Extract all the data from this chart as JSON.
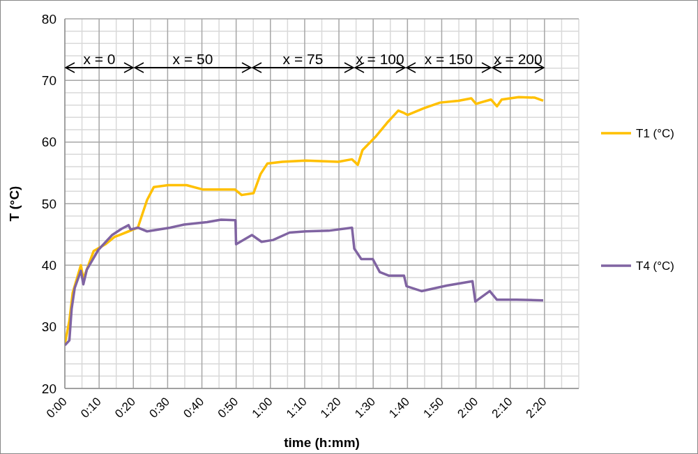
{
  "chart_data": {
    "type": "line",
    "xlabel": "time (h:mm)",
    "ylabel": "T (°C)",
    "xlim": [
      0,
      2.5
    ],
    "xticks": [
      {
        "value": 0,
        "label": "0:00"
      },
      {
        "value": 0.0833,
        "label": null
      },
      {
        "value": 0.1667,
        "label": "0:10"
      },
      {
        "value": 0.25,
        "label": null
      },
      {
        "value": 0.3333,
        "label": "0:20"
      },
      {
        "value": 0.4167,
        "label": null
      },
      {
        "value": 0.5,
        "label": "0:30"
      },
      {
        "value": 0.5833,
        "label": null
      },
      {
        "value": 0.6667,
        "label": "0:40"
      },
      {
        "value": 0.75,
        "label": null
      },
      {
        "value": 0.8333,
        "label": "0:50"
      },
      {
        "value": 0.9167,
        "label": null
      },
      {
        "value": 1,
        "label": "1:00"
      },
      {
        "value": 1.0833,
        "label": null
      },
      {
        "value": 1.1667,
        "label": "1:10"
      },
      {
        "value": 1.25,
        "label": null
      },
      {
        "value": 1.3333,
        "label": "1:20"
      },
      {
        "value": 1.4167,
        "label": null
      },
      {
        "value": 1.5,
        "label": "1:30"
      },
      {
        "value": 1.5833,
        "label": null
      },
      {
        "value": 1.6667,
        "label": "1:40"
      },
      {
        "value": 1.75,
        "label": null
      },
      {
        "value": 1.8333,
        "label": "1:50"
      },
      {
        "value": 1.9167,
        "label": null
      },
      {
        "value": 2,
        "label": "2:00"
      },
      {
        "value": 2.0833,
        "label": null
      },
      {
        "value": 2.1667,
        "label": "2:10"
      },
      {
        "value": 2.25,
        "label": null
      },
      {
        "value": 2.3333,
        "label": "2:20"
      },
      {
        "value": 2.4167,
        "label": null
      },
      {
        "value": 2.5,
        "label": null
      }
    ],
    "ylim": [
      20,
      80
    ],
    "yticks": [
      20,
      {
        "value": 22,
        "label": null
      },
      {
        "value": 24,
        "label": null
      },
      {
        "value": 26,
        "label": null
      },
      {
        "value": 28,
        "label": null
      },
      30,
      {
        "value": 32,
        "label": null
      },
      {
        "value": 34,
        "label": null
      },
      {
        "value": 36,
        "label": null
      },
      {
        "value": 38,
        "label": null
      },
      40,
      {
        "value": 42,
        "label": null
      },
      {
        "value": 44,
        "label": null
      },
      {
        "value": 46,
        "label": null
      },
      {
        "value": 48,
        "label": null
      },
      50,
      {
        "value": 52,
        "label": null
      },
      {
        "value": 54,
        "label": null
      },
      {
        "value": 56,
        "label": null
      },
      {
        "value": 58,
        "label": null
      },
      60,
      {
        "value": 62,
        "label": null
      },
      {
        "value": 64,
        "label": null
      },
      {
        "value": 66,
        "label": null
      },
      {
        "value": 68,
        "label": null
      },
      70,
      {
        "value": 72,
        "label": null
      },
      {
        "value": 74,
        "label": null
      },
      {
        "value": 76,
        "label": null
      },
      {
        "value": 78,
        "label": null
      },
      80
    ],
    "grid": true,
    "legend": "right",
    "marker": "none",
    "line_style": "solid",
    "series": [
      {
        "name": "T1 (°C)",
        "color": "#ffc000",
        "x": [
          0,
          0.022,
          0.038,
          0.078,
          0.09,
          0.14,
          0.197,
          0.242,
          0.265,
          0.31,
          0.355,
          0.377,
          0.4,
          0.433,
          0.502,
          0.592,
          0.67,
          0.76,
          0.827,
          0.86,
          0.918,
          0.952,
          0.985,
          1.058,
          1.172,
          1.33,
          1.397,
          1.425,
          1.448,
          1.51,
          1.567,
          1.622,
          1.645,
          1.667,
          1.747,
          1.825,
          1.915,
          1.977,
          2,
          2.073,
          2.102,
          2.125,
          2.208,
          2.287,
          2.327
        ],
        "values": [
          27.2,
          31,
          35.5,
          40,
          37.8,
          42.3,
          43.4,
          44.6,
          44.9,
          45.5,
          46.1,
          48.3,
          50.6,
          52.7,
          53,
          53,
          52.3,
          52.3,
          52.3,
          51.4,
          51.7,
          54.8,
          56.5,
          56.8,
          57,
          56.8,
          57.2,
          56.3,
          58.7,
          60.8,
          63.1,
          65.1,
          64.8,
          64.4,
          65.5,
          66.4,
          66.7,
          67.1,
          66.2,
          66.9,
          65.8,
          66.9,
          67.3,
          67.2,
          66.7
        ]
      },
      {
        "name": "T4 (°C)",
        "color": "#8064a2",
        "x": [
          0,
          0.022,
          0.033,
          0.048,
          0.078,
          0.09,
          0.107,
          0.163,
          0.23,
          0.275,
          0.31,
          0.32,
          0.355,
          0.4,
          0.512,
          0.58,
          0.692,
          0.76,
          0.83,
          0.833,
          0.91,
          0.957,
          1.013,
          1.093,
          1.172,
          1.283,
          1.397,
          1.408,
          1.442,
          1.498,
          1.532,
          1.577,
          1.65,
          1.662,
          1.735,
          1.858,
          1.983,
          1.997,
          2.067,
          2.102,
          2.197,
          2.327
        ],
        "values": [
          27,
          27.8,
          32.9,
          36.3,
          39.1,
          36.9,
          39.3,
          42.5,
          44.9,
          45.9,
          46.5,
          45.8,
          46.1,
          45.5,
          46.1,
          46.6,
          47,
          47.4,
          47.3,
          43.4,
          44.9,
          43.8,
          44.1,
          45.3,
          45.5,
          45.6,
          46.1,
          42.7,
          41,
          41,
          38.9,
          38.3,
          38.3,
          36.6,
          35.8,
          36.7,
          37.4,
          34.1,
          35.8,
          34.4,
          34.4,
          34.3
        ]
      }
    ],
    "annotations": [
      "x = 0",
      "x = 50",
      "x = 75",
      "x = 100",
      "x = 150",
      "x = 200"
    ]
  }
}
